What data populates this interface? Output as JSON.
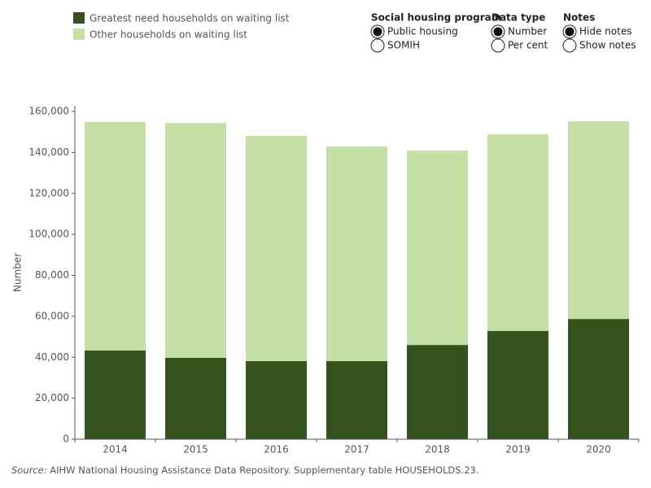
{
  "chart_data": {
    "type": "stacked_bar",
    "categories": [
      "2014",
      "2015",
      "2016",
      "2017",
      "2018",
      "2019",
      "2020"
    ],
    "series": [
      {
        "name": "Greatest need households on waiting list",
        "color": "#33521e",
        "values": [
          43300,
          39700,
          38100,
          38100,
          46000,
          52800,
          58700
        ]
      },
      {
        "name": "Other households on waiting list",
        "color": "#c4e0a6",
        "values": [
          111500,
          114700,
          110000,
          104800,
          94900,
          96100,
          96500
        ]
      }
    ],
    "y_label": "Number",
    "ylim": [
      0,
      160000
    ],
    "yticks": [
      0,
      {
        "value": 20000,
        "label": "20,000"
      },
      {
        "value": 40000,
        "label": "40,000"
      },
      {
        "value": 60000,
        "label": "60,000"
      },
      {
        "value": 80000,
        "label": "80,000"
      },
      {
        "value": 100000,
        "label": "100,000"
      },
      {
        "value": 120000,
        "label": "120,000"
      },
      {
        "value": 140000,
        "label": "140,000"
      },
      {
        "value": 160000,
        "label": "160,000"
      }
    ]
  },
  "controls": [
    {
      "title": "Social housing program",
      "options": [
        "Public housing",
        "SOMIH"
      ],
      "selected": 0
    },
    {
      "title": "Data type",
      "options": [
        "Number",
        "Per cent"
      ],
      "selected": 0
    },
    {
      "title": "Notes",
      "options": [
        "Hide notes",
        "Show notes"
      ],
      "selected": 0
    }
  ],
  "source": {
    "label": "Source:",
    "text": "AIHW National Housing Assistance Data Repository. Supplementary table HOUSEHOLDS.23."
  }
}
